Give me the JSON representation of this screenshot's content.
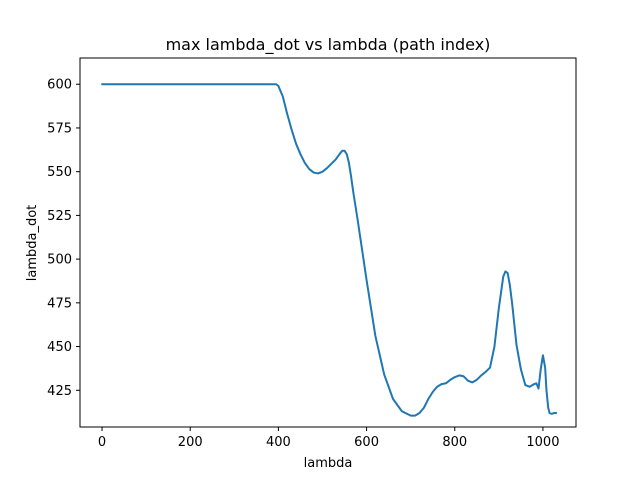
{
  "chart_data": {
    "type": "line",
    "title": "max lambda_dot vs lambda (path index)",
    "xlabel": "lambda",
    "ylabel": "lambda_dot",
    "xlim": [
      -50,
      1075
    ],
    "ylim": [
      404,
      615
    ],
    "xticks": [
      0,
      200,
      400,
      600,
      800,
      1000
    ],
    "yticks": [
      425,
      450,
      475,
      500,
      525,
      550,
      575,
      600
    ],
    "grid": false,
    "line_color": "#1f77b4",
    "series": [
      {
        "x": [
          0,
          100,
          200,
          300,
          395,
          400,
          410,
          420,
          430,
          440,
          450,
          460,
          470,
          480,
          490,
          500,
          510,
          520,
          530,
          540,
          545,
          550,
          555,
          560,
          565,
          570,
          575,
          580,
          590,
          600,
          620,
          640,
          660,
          680,
          700,
          710,
          720,
          730,
          740,
          750,
          760,
          770,
          780,
          790,
          800,
          810,
          820,
          830,
          840,
          850,
          860,
          870,
          880,
          890,
          900,
          910,
          915,
          920,
          925,
          930,
          935,
          940,
          950,
          960,
          970,
          980,
          985,
          990,
          995,
          1000,
          1005,
          1008,
          1012,
          1015,
          1020,
          1025,
          1030
        ],
        "y": [
          600,
          600,
          600,
          600,
          600,
          599,
          593,
          583,
          574,
          566,
          560,
          555,
          551.5,
          549.5,
          549,
          550,
          552,
          554.5,
          557,
          560.5,
          562,
          562,
          560,
          555,
          547,
          538,
          530,
          522,
          505,
          488,
          456,
          434,
          420,
          413,
          410.5,
          410.5,
          412,
          415,
          420,
          424,
          427,
          428.5,
          429,
          431,
          432.5,
          433.5,
          433,
          430.5,
          429.5,
          431,
          433.5,
          435.5,
          438,
          450,
          472,
          490,
          493,
          492,
          485,
          475,
          463,
          451,
          437,
          428,
          427,
          428.5,
          429,
          426,
          437,
          445,
          438,
          425,
          415,
          412,
          411.5,
          412,
          412
        ]
      }
    ]
  }
}
